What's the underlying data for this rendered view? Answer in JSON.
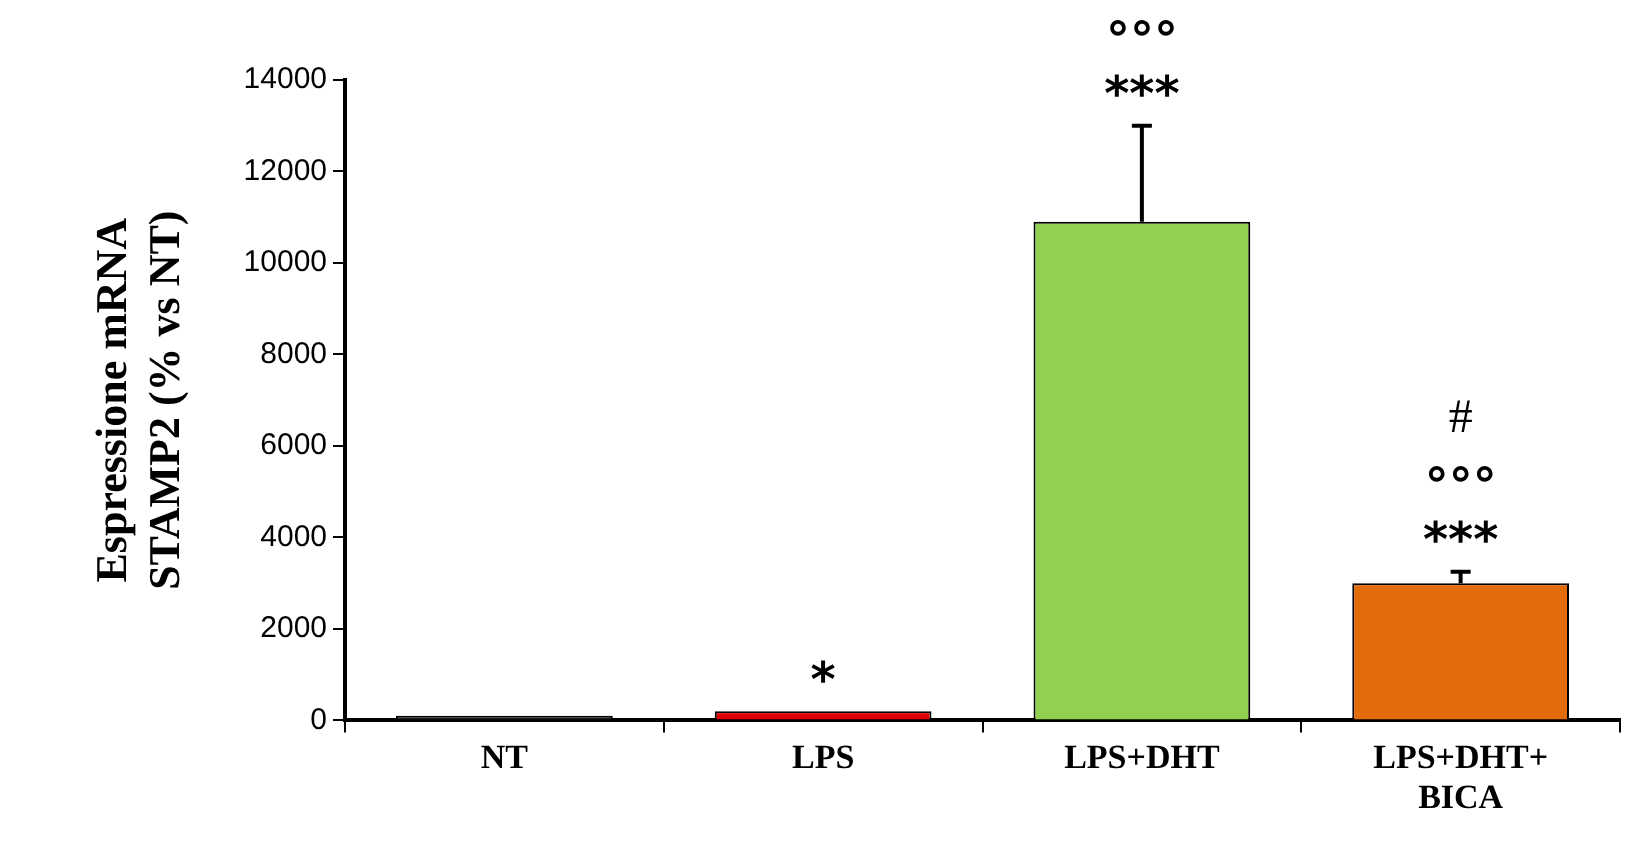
{
  "chart_data": {
    "type": "bar",
    "ylabel": "Espressione mRNA\nSTAMP2 (% vs NT)",
    "categories": [
      "NT",
      "LPS",
      "LPS+DHT",
      "LPS+DHT+\nBICA"
    ],
    "values": [
      100,
      200,
      10900,
      3000
    ],
    "colors": [
      "#1a1a1a",
      "#e00000",
      "#92d050",
      "#e36c0a"
    ],
    "errors": [
      null,
      null,
      [
        10900,
        13000
      ],
      [
        3000,
        3250
      ]
    ],
    "ylim": [
      0,
      14000
    ],
    "yticks": [
      0,
      2000,
      4000,
      6000,
      8000,
      10000,
      12000,
      14000
    ],
    "grid": false,
    "legend": false,
    "annotations": [
      {
        "text": "*",
        "x": "LPS",
        "y": 200
      },
      {
        "text": "***",
        "x": "LPS+DHT",
        "y": 13000
      },
      {
        "text": "°°°",
        "x": "LPS+DHT",
        "y": 13000
      },
      {
        "text": "***",
        "x": "LPS+DHT+\nBICA",
        "y": 3250
      },
      {
        "text": "°°°",
        "x": "LPS+DHT+\nBICA",
        "y": 3250
      },
      {
        "text": "#",
        "x": "LPS+DHT+\nBICA",
        "y": 3250
      }
    ]
  }
}
